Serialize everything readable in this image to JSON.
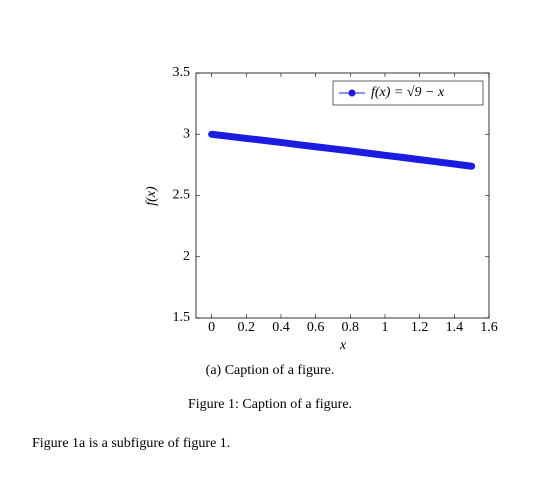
{
  "chart_data": {
    "type": "line",
    "x_label": "x",
    "y_label": "f(x)",
    "x": [
      0,
      0.1,
      0.2,
      0.3,
      0.4,
      0.5,
      0.6,
      0.7,
      0.8,
      0.9,
      1.0,
      1.1,
      1.2,
      1.3,
      1.4,
      1.5
    ],
    "series": [
      {
        "name": "f(x) = √9 − x",
        "color": "#1c1ce0",
        "values": [
          3,
          2.983,
          2.966,
          2.95,
          2.933,
          2.915,
          2.898,
          2.881,
          2.864,
          2.846,
          2.828,
          2.811,
          2.793,
          2.775,
          2.757,
          2.739
        ]
      }
    ],
    "xlim": [
      -0.09,
      1.6
    ],
    "xticks": [
      0,
      0.2,
      0.4,
      0.6,
      0.8,
      1,
      1.2,
      1.4,
      1.6
    ],
    "ylim": [
      1.5,
      3.5
    ],
    "yticks": [
      1.5,
      2,
      2.5,
      3,
      3.5
    ],
    "grid": false,
    "legend_position": "top-right"
  },
  "subcaption": "(a) Caption of a figure.",
  "caption": "Figure 1: Caption of a figure.",
  "body": "Figure 1a is a subfigure of figure 1."
}
